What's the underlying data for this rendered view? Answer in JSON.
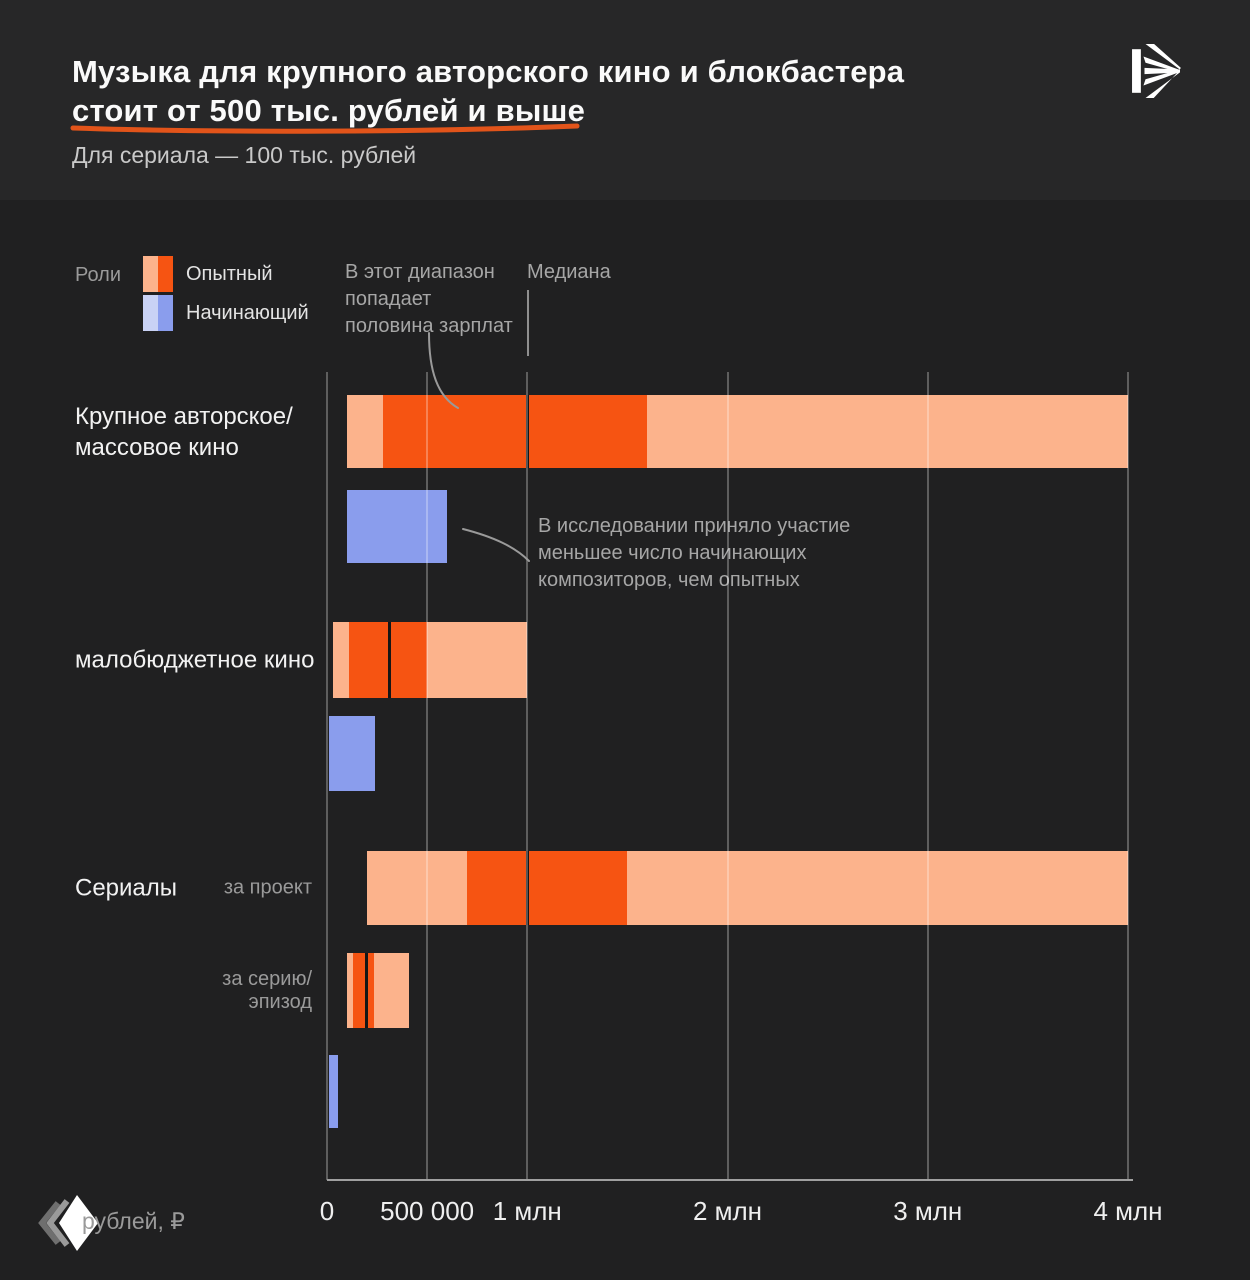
{
  "header": {
    "title_line1": "Музыка для крупного авторского кино и блокбастера",
    "title_line2": "стоит от 500 тыс. рублей и выше",
    "subtitle": "Для сериала — 100 тыс. рублей",
    "underline_color": "#e2541a"
  },
  "logo": {
    "name": "kinopoisk-logo"
  },
  "footer": {
    "unit_label": "рублей, ₽"
  },
  "legend": {
    "label": "Роли",
    "items": [
      {
        "label": "Опытный",
        "color_light": "#fcb38c",
        "color_main": "#f65412"
      },
      {
        "label": "Начинающий",
        "color_light": "#c9d2f5",
        "color_main": "#8a9ded"
      }
    ]
  },
  "annotations": {
    "range_note": "В этот диапазон\nпопадает\nполовина зарплат",
    "median_label": "Медиана",
    "beginner_note": "В исследовании приняло участие\nменьшее число начинающих\nкомпозиторов, чем опытных"
  },
  "chart_data": {
    "type": "bar",
    "subtype": "horizontal-range-with-iqr-and-median",
    "unit": "rubles",
    "xlim": [
      0,
      4000000
    ],
    "grid": true,
    "axis_ticks": [
      {
        "label": "0",
        "value": 0
      },
      {
        "label": "500 000",
        "value": 500000
      },
      {
        "label": "1 млн",
        "value": 1000000
      },
      {
        "label": "2 млн",
        "value": 2000000
      },
      {
        "label": "3 млн",
        "value": 3000000
      },
      {
        "label": "4 млн",
        "value": 4000000
      }
    ],
    "rows": [
      {
        "category": "Крупное авторское/массовое кино",
        "label": "Крупное авторское/\nмассовое кино",
        "role": "Опытный",
        "min": 100000,
        "q1": 280000,
        "median": 1000000,
        "q3": 1600000,
        "max": 4000000
      },
      {
        "category": "Крупное авторское/массовое кино",
        "role": "Начинающий",
        "min": 100000,
        "max": 600000
      },
      {
        "category": "малобюджетное кино",
        "label": "малобюджетное кино",
        "role": "Опытный",
        "min": 30000,
        "q1": 110000,
        "median": 310000,
        "q3": 500000,
        "max": 1000000
      },
      {
        "category": "малобюджетное кино",
        "role": "Начинающий",
        "min": 10000,
        "max": 240000
      },
      {
        "category": "Сериалы",
        "label": "Сериалы",
        "sublabel": "за проект",
        "role": "Опытный",
        "min": 200000,
        "q1": 700000,
        "median": 1000000,
        "q3": 1500000,
        "max": 4000000
      },
      {
        "category": "Сериалы",
        "sublabel": "за серию/эпизод",
        "role": "Опытный",
        "min": 100000,
        "q1": 130000,
        "median": 195000,
        "q3": 235000,
        "max": 410000
      },
      {
        "category": "Сериалы",
        "role": "Начинающий",
        "min": 10000,
        "max": 55000
      }
    ]
  }
}
